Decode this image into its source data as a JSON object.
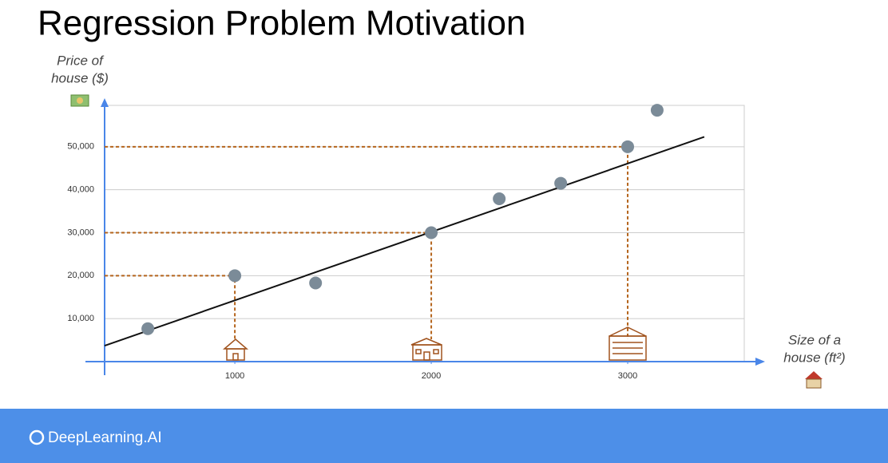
{
  "chart_data": {
    "type": "scatter",
    "title": "Regression Problem Motivation",
    "y_label": [
      "Price of",
      "house ($)"
    ],
    "x_label": [
      "Size of a",
      "house (ft²)"
    ],
    "x": [
      557,
      1000,
      1411,
      2000,
      2346,
      2659,
      3000,
      3150
    ],
    "values": [
      7660,
      20000,
      18300,
      30000,
      37900,
      41500,
      50000,
      58500
    ],
    "color": "#7b8b98",
    "fit_line": {
      "x": [
        337,
        3390
      ],
      "y": [
        3700,
        52300
      ],
      "color": "#111111"
    },
    "guides": [
      {
        "x": 1000,
        "y": 20000
      },
      {
        "x": 2000,
        "y": 30000
      },
      {
        "x": 3000,
        "y": 50000
      }
    ],
    "guide_color": "#b5651d",
    "xlim": [
      337,
      3687
    ],
    "ylim": [
      0,
      60000
    ],
    "xticks": [
      1000,
      2000,
      3000
    ],
    "yticks": [
      {
        "value": 10000,
        "label": "10,000"
      },
      {
        "value": 20000,
        "label": "20,000"
      },
      {
        "value": 30000,
        "label": "30,000"
      },
      {
        "value": 40000,
        "label": "40,000"
      },
      {
        "value": 50000,
        "label": "50,000"
      }
    ],
    "grid": true,
    "axis_color": "#4a86e8",
    "footer_brand": "DeepLearning.AI"
  }
}
